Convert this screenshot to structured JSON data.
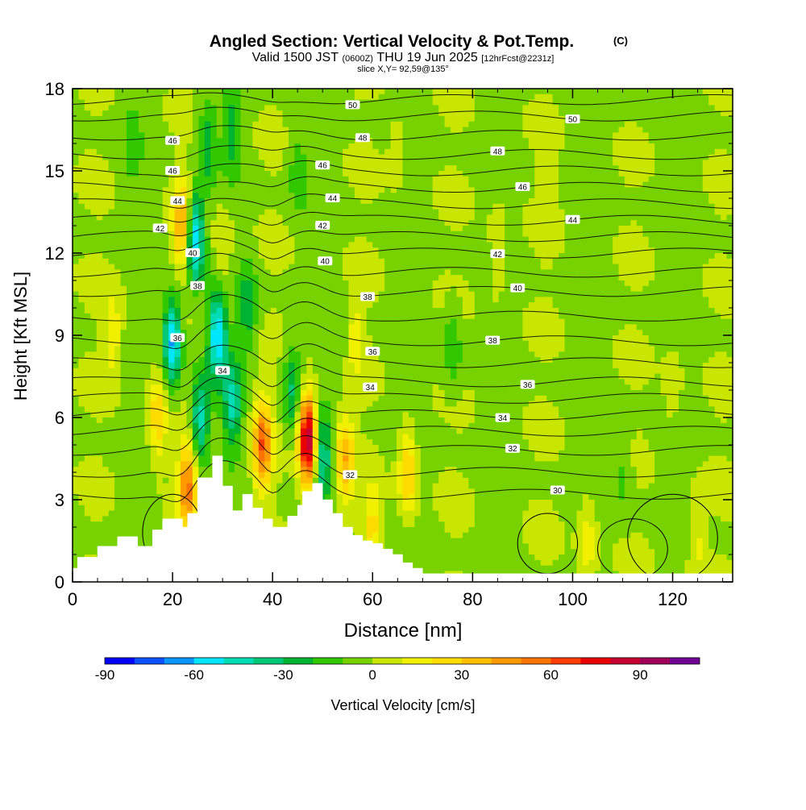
{
  "chart_data": {
    "type": "heatmap",
    "title": "Angled Section: Vertical Velocity & Pot.Temp.",
    "title_mark": "(C)",
    "subtitle": {
      "valid": "Valid 1500 JST",
      "zulu": "(0600Z)",
      "date": "THU 19 Jun 2025",
      "fcst": "[12hrFcst@2231z]"
    },
    "slice_label": "slice X,Y= 92,59@135°",
    "xlabel": "Distance [nm]",
    "ylabel": "Height [Kft MSL]",
    "xlim": [
      0,
      132
    ],
    "ylim": [
      0,
      18
    ],
    "x_ticks": [
      0,
      20,
      40,
      60,
      80,
      100,
      120
    ],
    "y_ticks": [
      0,
      3,
      6,
      9,
      12,
      15,
      18
    ],
    "colorbar": {
      "label": "Vertical Velocity [cm/s]",
      "tick_values": [
        -90,
        -60,
        -30,
        0,
        30,
        60,
        90
      ],
      "tick_labels": [
        "-90",
        "-60",
        "-30",
        "0",
        "30",
        "60",
        "90"
      ],
      "bin_edges": [
        -90,
        -80,
        -70,
        -60,
        -50,
        -40,
        -30,
        -20,
        -10,
        0,
        10,
        20,
        30,
        40,
        50,
        60,
        70,
        80,
        90,
        100,
        110
      ],
      "colors": [
        "#0000ff",
        "#0a50ff",
        "#0a96ff",
        "#00e6ff",
        "#00dcb4",
        "#00c878",
        "#00b432",
        "#32c800",
        "#78d200",
        "#c8e600",
        "#f0f000",
        "#ffdc00",
        "#ffbe00",
        "#ff9b00",
        "#ff7300",
        "#ff3c00",
        "#eb0000",
        "#c80032",
        "#a0005a",
        "#6e0096"
      ]
    },
    "background_field": {
      "base_value": -2,
      "features": [
        {
          "x": 20,
          "y": 8.8,
          "value": -60
        },
        {
          "x": 24.5,
          "y": 12.5,
          "value": -65
        },
        {
          "x": 29,
          "y": 9,
          "value": -60
        },
        {
          "x": 27,
          "y": 16,
          "value": -25
        },
        {
          "x": 32,
          "y": 16.5,
          "value": -22
        },
        {
          "x": 35,
          "y": 10,
          "value": -25
        },
        {
          "x": 25.5,
          "y": 6,
          "value": -45
        },
        {
          "x": 32,
          "y": 6.5,
          "value": -40
        },
        {
          "x": 44,
          "y": 7,
          "value": -30
        },
        {
          "x": 50,
          "y": 4.5,
          "value": -40
        },
        {
          "x": 45,
          "y": 15,
          "value": -15
        },
        {
          "x": 55,
          "y": 9,
          "value": -15
        },
        {
          "x": 76,
          "y": 8.5,
          "value": -18
        },
        {
          "x": 8,
          "y": 9,
          "value": 20
        },
        {
          "x": 17,
          "y": 6,
          "value": 30
        },
        {
          "x": 22,
          "y": 13,
          "value": 45
        },
        {
          "x": 23,
          "y": 3.5,
          "value": 55
        },
        {
          "x": 30,
          "y": 12,
          "value": 15
        },
        {
          "x": 38,
          "y": 5,
          "value": 60
        },
        {
          "x": 47,
          "y": 5.2,
          "value": 100
        },
        {
          "x": 54.5,
          "y": 4.5,
          "value": 40
        },
        {
          "x": 56,
          "y": 9,
          "value": 25
        },
        {
          "x": 60,
          "y": 2,
          "value": 25
        },
        {
          "x": 67,
          "y": 4,
          "value": 35
        },
        {
          "x": 85,
          "y": 12,
          "value": 12
        },
        {
          "x": 95,
          "y": 14,
          "value": 8
        },
        {
          "x": 120,
          "y": 7,
          "value": 10
        },
        {
          "x": 103,
          "y": 1.5,
          "value": 20
        },
        {
          "x": 125,
          "y": 1.5,
          "value": 15
        },
        {
          "x": 110,
          "y": 4,
          "value": -12
        },
        {
          "x": 65,
          "y": 16,
          "value": 8
        },
        {
          "x": 12,
          "y": 16,
          "value": -12
        }
      ]
    },
    "terrain": {
      "x": [
        0,
        1,
        1,
        5,
        5,
        9,
        9,
        13,
        13,
        16,
        16,
        18,
        18,
        22,
        22,
        23,
        23,
        25,
        25,
        28,
        28,
        30,
        30,
        32,
        32,
        34,
        34,
        36,
        36,
        38,
        38,
        40,
        40,
        43,
        43,
        45,
        45,
        46,
        46,
        48,
        48,
        50,
        50,
        52,
        52,
        54,
        54,
        56,
        56,
        58,
        58,
        60,
        60,
        62,
        62,
        64,
        64,
        66,
        66,
        68,
        68,
        70,
        70,
        132
      ],
      "y": [
        0.5,
        0.5,
        0.9,
        0.9,
        1.3,
        1.3,
        1.65,
        1.65,
        1.3,
        1.3,
        1.9,
        1.9,
        2.3,
        2.3,
        2.0,
        2.0,
        2.5,
        2.5,
        3.8,
        3.8,
        4.6,
        4.6,
        3.5,
        3.5,
        2.6,
        2.6,
        3.2,
        3.2,
        2.7,
        2.7,
        2.3,
        2.3,
        2.0,
        2.0,
        2.4,
        2.4,
        2.8,
        2.8,
        3.3,
        3.3,
        3.6,
        3.6,
        3.0,
        3.0,
        2.5,
        2.5,
        2.0,
        2.0,
        1.7,
        1.7,
        1.5,
        1.5,
        1.4,
        1.4,
        1.2,
        1.2,
        1.0,
        1.0,
        0.7,
        0.7,
        0.5,
        0.5,
        0.3,
        0.3
      ]
    },
    "isentropes": [
      {
        "value": "30",
        "base": 3.2,
        "label_x": 97
      },
      {
        "value": "31",
        "base": 4.0
      },
      {
        "value": "32",
        "base": 4.8,
        "label_x": 88
      },
      {
        "value": "33",
        "base": 5.5
      },
      {
        "value": "34",
        "base": 6.1,
        "label_x": 86
      },
      {
        "value": "35",
        "base": 6.7
      },
      {
        "value": "36",
        "base": 7.3,
        "label_x": 91
      },
      {
        "value": "37",
        "base": 8.0
      },
      {
        "value": "38",
        "base": 8.8,
        "label_x": 84
      },
      {
        "value": "39",
        "base": 9.7
      },
      {
        "value": "40",
        "base": 10.6,
        "label_x": 89
      },
      {
        "value": "41",
        "base": 11.3
      },
      {
        "value": "42",
        "base": 12.0,
        "label_x": 85
      },
      {
        "value": "43",
        "base": 12.6
      },
      {
        "value": "44",
        "base": 13.2,
        "label_x": 100
      },
      {
        "value": "45",
        "base": 13.8
      },
      {
        "value": "46",
        "base": 14.4,
        "label_x": 90
      },
      {
        "value": "47",
        "base": 15.0
      },
      {
        "value": "48",
        "base": 15.6,
        "label_x": 85
      },
      {
        "value": "49",
        "base": 16.3
      },
      {
        "value": "50",
        "base": 17.0,
        "label_x": 100
      },
      {
        "value": "51",
        "base": 17.6
      }
    ],
    "extra_labels": [
      {
        "text": "50",
        "x": 56,
        "y": 17.4
      },
      {
        "text": "48",
        "x": 58,
        "y": 16.2
      },
      {
        "text": "46",
        "x": 20,
        "y": 16.1
      },
      {
        "text": "46",
        "x": 20,
        "y": 15.0
      },
      {
        "text": "46",
        "x": 50,
        "y": 15.2
      },
      {
        "text": "44",
        "x": 21,
        "y": 13.9
      },
      {
        "text": "44",
        "x": 52,
        "y": 14.0
      },
      {
        "text": "42",
        "x": 17.5,
        "y": 12.9
      },
      {
        "text": "42",
        "x": 50,
        "y": 13.0
      },
      {
        "text": "40",
        "x": 24,
        "y": 12.0
      },
      {
        "text": "40",
        "x": 50.5,
        "y": 11.7
      },
      {
        "text": "38",
        "x": 25,
        "y": 10.8
      },
      {
        "text": "38",
        "x": 59,
        "y": 10.4
      },
      {
        "text": "36",
        "x": 21,
        "y": 8.9
      },
      {
        "text": "36",
        "x": 60,
        "y": 8.4
      },
      {
        "text": "34",
        "x": 30,
        "y": 7.7
      },
      {
        "text": "34",
        "x": 59.5,
        "y": 7.1
      },
      {
        "text": "32",
        "x": 55.5,
        "y": 3.9
      }
    ]
  }
}
